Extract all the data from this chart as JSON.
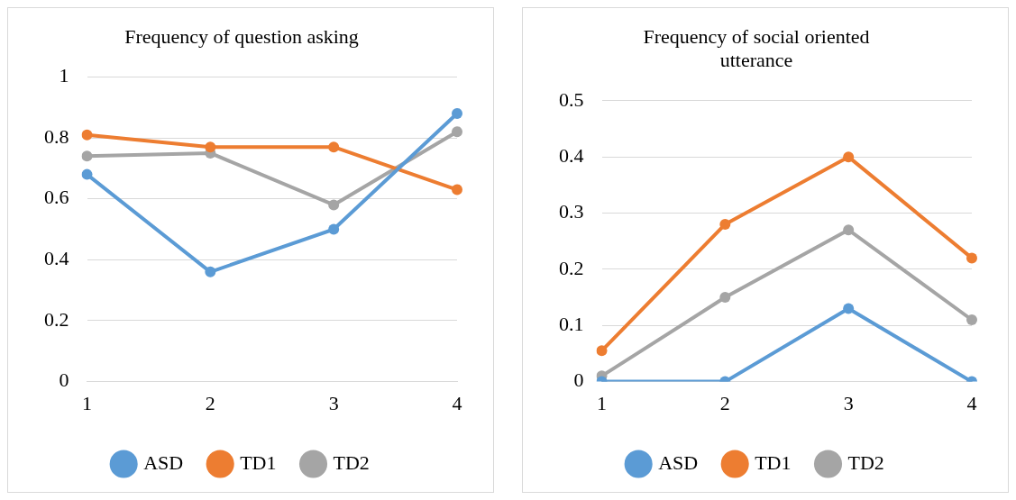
{
  "chart_data": [
    {
      "type": "line",
      "title": "Frequency of question asking",
      "categories": [
        "1",
        "2",
        "3",
        "4"
      ],
      "ylim": [
        0,
        1
      ],
      "yticks": [
        0,
        0.2,
        0.4,
        0.6,
        0.8,
        1
      ],
      "grid": "y",
      "legend": "bottom",
      "marker": "circle",
      "series": [
        {
          "name": "ASD",
          "color": "#5b9bd5",
          "values": [
            0.68,
            0.36,
            0.5,
            0.88
          ]
        },
        {
          "name": "TD1",
          "color": "#ed7d31",
          "values": [
            0.81,
            0.77,
            0.77,
            0.63
          ]
        },
        {
          "name": "TD2",
          "color": "#a5a5a5",
          "values": [
            0.74,
            0.75,
            0.58,
            0.82
          ]
        }
      ]
    },
    {
      "type": "line",
      "title": "Frequency of social oriented utterance",
      "categories": [
        "1",
        "2",
        "3",
        "4"
      ],
      "ylim": [
        0,
        0.5
      ],
      "yticks": [
        0,
        0.1,
        0.2,
        0.3,
        0.4,
        0.5
      ],
      "grid": "y",
      "legend": "bottom",
      "marker": "circle",
      "series": [
        {
          "name": "ASD",
          "color": "#5b9bd5",
          "values": [
            0,
            0,
            0.13,
            0
          ]
        },
        {
          "name": "TD1",
          "color": "#ed7d31",
          "values": [
            0.055,
            0.28,
            0.4,
            0.22
          ]
        },
        {
          "name": "TD2",
          "color": "#a5a5a5",
          "values": [
            0.01,
            0.15,
            0.27,
            0.11
          ]
        }
      ]
    }
  ]
}
